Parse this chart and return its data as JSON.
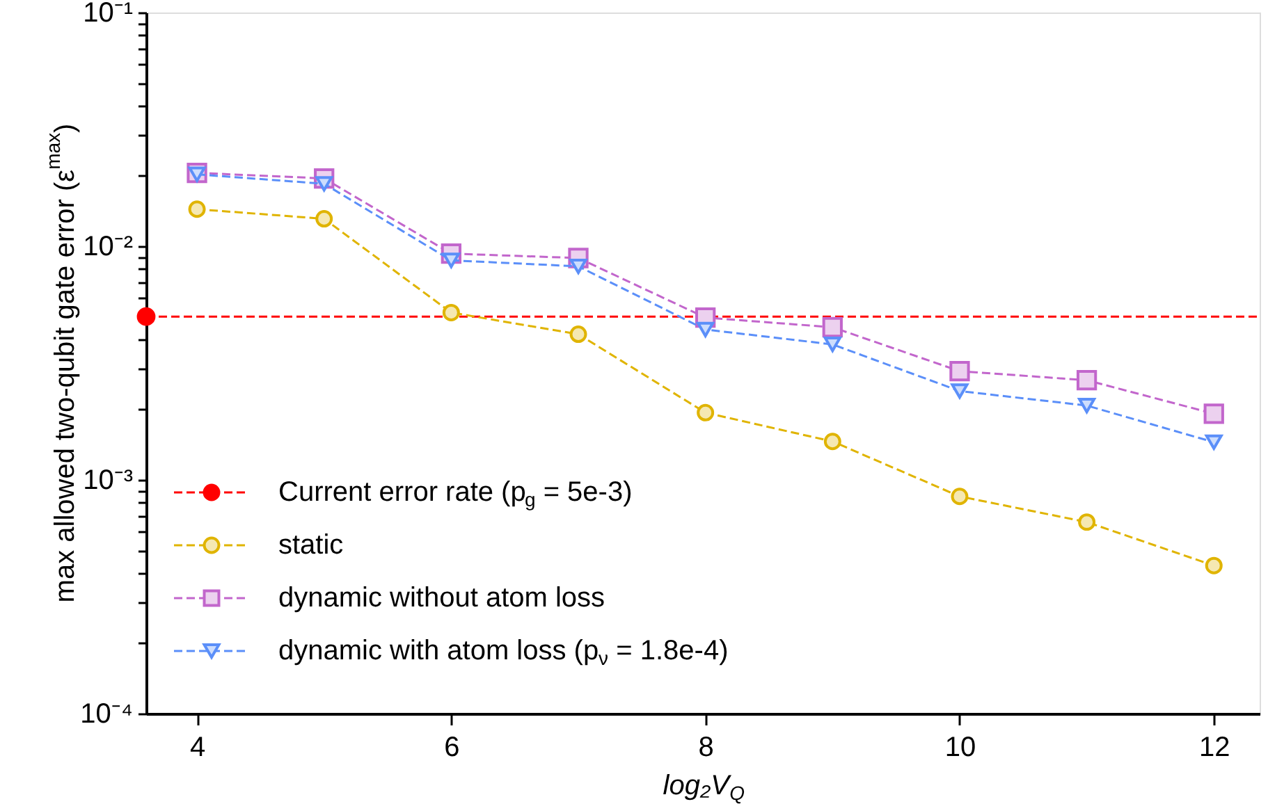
{
  "chart_data": {
    "type": "line",
    "xlabel": "log₂V$_{Q}$",
    "ylabel": "max allowed two-qubit gate error (ε$^{max}$)",
    "x": [
      4,
      5,
      6,
      7,
      8,
      9,
      10,
      11,
      12
    ],
    "series": [
      {
        "name": "static",
        "color": "#e0b400",
        "marker": "circle",
        "values": [
          0.0144,
          0.0131,
          0.0052,
          0.0042,
          0.00194,
          0.00146,
          0.00085,
          0.00066,
          0.00043
        ]
      },
      {
        "name": "dynamic without atom loss",
        "color": "#c266cc",
        "marker": "square",
        "values": [
          0.0206,
          0.0195,
          0.0093,
          0.0089,
          0.00495,
          0.0045,
          0.00292,
          0.00267,
          0.00192
        ]
      },
      {
        "name": "dynamic with atom loss (p$_{ν}$ = 1.8e-4)",
        "color": "#5b8ff9",
        "marker": "triangle",
        "values": [
          0.0203,
          0.0185,
          0.0087,
          0.0082,
          0.0044,
          0.0038,
          0.0024,
          0.00208,
          0.00145
        ]
      },
      {
        "type": "scatter",
        "color": "#ff0000",
        "marker": "circle",
        "x": [
          3.6
        ],
        "values": [
          0.005
        ]
      }
    ],
    "ref_lines": [
      {
        "axis": "y",
        "value": 0.005,
        "label": "Current error rate (p$_{g}$ = 5e-3)",
        "color": "#ff0000",
        "line_style": "dashed"
      }
    ],
    "line_style": "dashed",
    "log": "y",
    "xlim": [
      3.6,
      12.36
    ],
    "xticks": [
      4,
      6,
      8,
      10,
      12
    ],
    "ylim": [
      0.0001,
      0.1
    ],
    "yticks": [
      {
        "value": 0.0001,
        "label": "10⁻⁴"
      },
      {
        "value": 0.0002,
        "label": null
      },
      {
        "value": 0.0003,
        "label": null
      },
      {
        "value": 0.0004,
        "label": null
      },
      {
        "value": 0.0005,
        "label": null
      },
      {
        "value": 0.0006,
        "label": null
      },
      {
        "value": 0.0007,
        "label": null
      },
      {
        "value": 0.0008,
        "label": null
      },
      {
        "value": 0.0009,
        "label": null
      },
      {
        "value": 0.001,
        "label": "10⁻³"
      },
      {
        "value": 0.002,
        "label": null
      },
      {
        "value": 0.003,
        "label": null
      },
      {
        "value": 0.004,
        "label": null
      },
      {
        "value": 0.005,
        "label": null
      },
      {
        "value": 0.006,
        "label": null
      },
      {
        "value": 0.007,
        "label": null
      },
      {
        "value": 0.008,
        "label": null
      },
      {
        "value": 0.009,
        "label": null
      },
      {
        "value": 0.01,
        "label": "10⁻²"
      },
      {
        "value": 0.02,
        "label": null
      },
      {
        "value": 0.03,
        "label": null
      },
      {
        "value": 0.04,
        "label": null
      },
      {
        "value": 0.05,
        "label": null
      },
      {
        "value": 0.06,
        "label": null
      },
      {
        "value": 0.07,
        "label": null
      },
      {
        "value": 0.08,
        "label": null
      },
      {
        "value": 0.09,
        "label": null
      },
      {
        "value": 0.1,
        "label": "10⁻¹"
      }
    ],
    "grid": false,
    "legend": "bottom left"
  }
}
